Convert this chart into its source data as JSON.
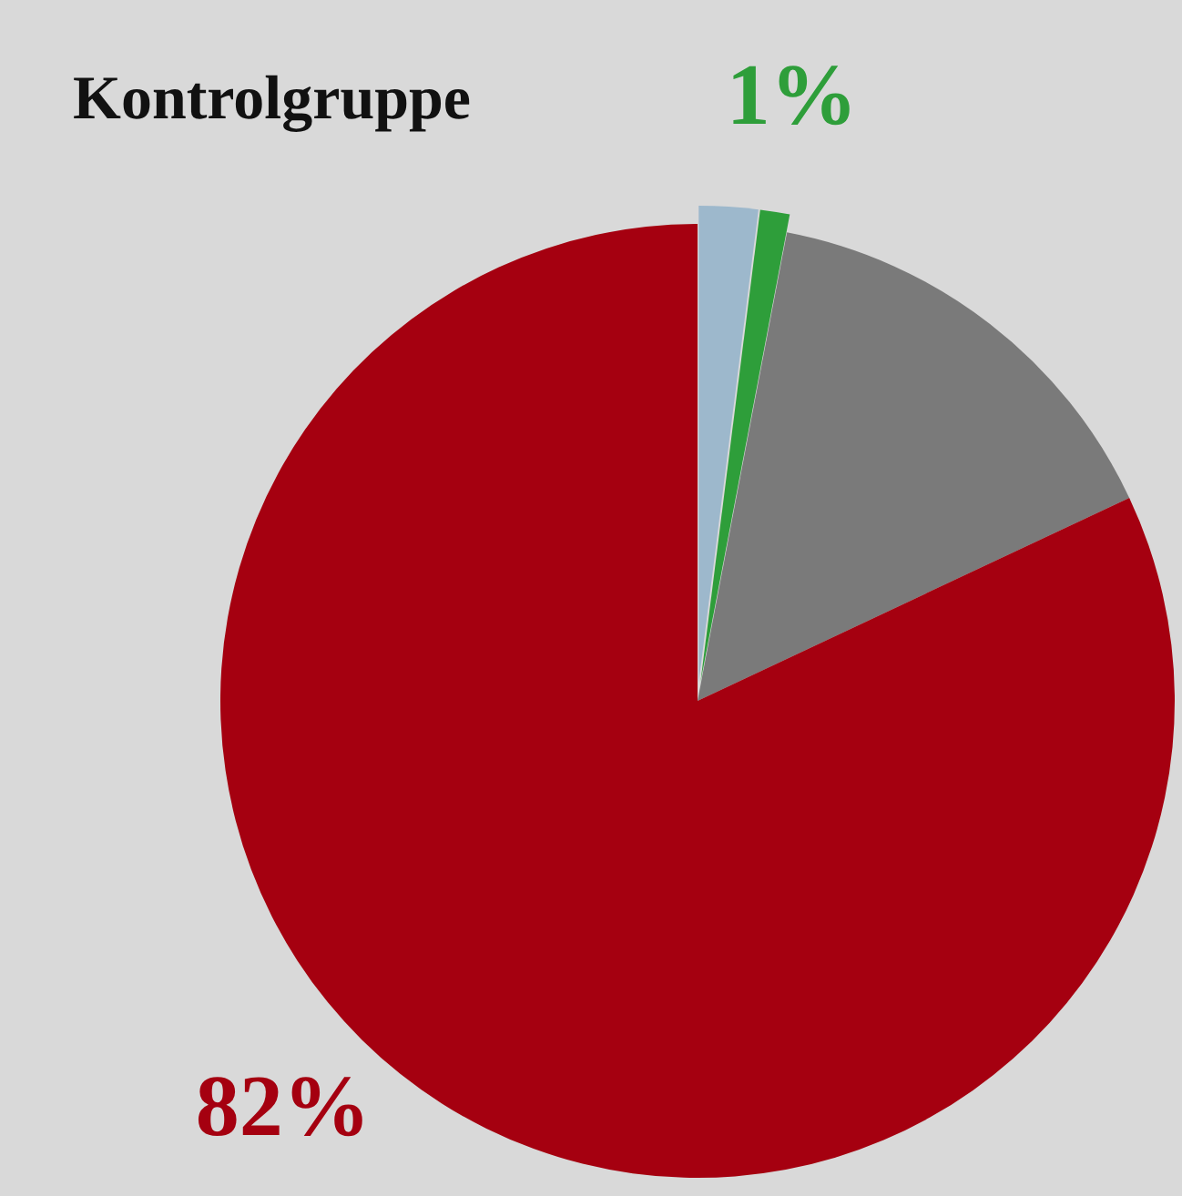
{
  "chart_data": {
    "type": "pie",
    "title": "Kontrolgruppe",
    "categories": [
      null,
      null,
      null,
      null
    ],
    "values": [
      2,
      1,
      15,
      82
    ],
    "colors": [
      "#9db8cc",
      "#2e9e3a",
      "#7a7a7a",
      "#a50010"
    ],
    "value_labels": [
      null,
      "1%",
      null,
      "82%"
    ]
  }
}
